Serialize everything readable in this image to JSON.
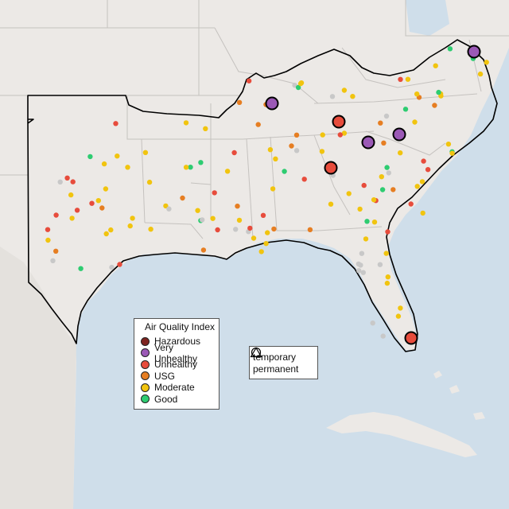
{
  "legend": {
    "title": "Air Quality Index",
    "categories": [
      {
        "label": "Hazardous",
        "color": "#7e2420"
      },
      {
        "label": "Very Unhealthy",
        "color": "#9b59b6"
      },
      {
        "label": "Unhealthy",
        "color": "#e74c3c"
      },
      {
        "label": "USG",
        "color": "#e67e22"
      },
      {
        "label": "Moderate",
        "color": "#f1c40f"
      },
      {
        "label": "Good",
        "color": "#2ecc71"
      }
    ]
  },
  "shape_legend": {
    "items": [
      {
        "label": "temporary",
        "shape": "circle"
      },
      {
        "label": "permanent",
        "shape": "triangle"
      }
    ]
  },
  "colors": {
    "water": "#cfdeea",
    "land": "#ece9e6",
    "mexico": "#e4e1dd",
    "no_data": "#c8c8c8"
  },
  "monitors": {
    "large_temporary": [
      {
        "lon": -88.3,
        "lat": 37.8,
        "aqi": "Very Unhealthy"
      },
      {
        "lon": -83.3,
        "lat": 36.9,
        "aqi": "Unhealthy"
      },
      {
        "lon": -80.5,
        "lat": 35.5,
        "aqi": "Very Unhealthy"
      },
      {
        "lon": -79.0,
        "lat": 35.9,
        "aqi": "Very Unhealthy"
      },
      {
        "lon": -83.9,
        "lat": 34.2,
        "aqi": "Unhealthy"
      },
      {
        "lon": -76.2,
        "lat": 39.7,
        "aqi": "Very Unhealthy"
      },
      {
        "lon": -80.3,
        "lat": 25.9,
        "aqi": "Unhealthy"
      }
    ]
  }
}
